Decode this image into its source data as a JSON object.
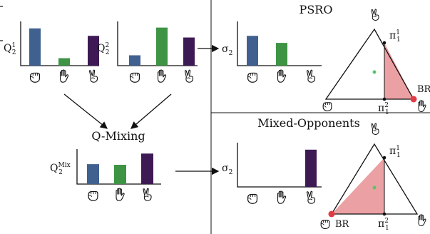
{
  "colors": {
    "blue": "#40618f",
    "green": "#3e9444",
    "purple": "#3e1a55",
    "shade": "#eba0a3",
    "br_dot": "#df3c45",
    "center_dot": "#55c66b",
    "line": "#111111"
  },
  "icons": {
    "rock": "rock-hand-icon",
    "paper": "paper-hand-icon",
    "scissors": "scissors-hand-icon"
  },
  "charts": [
    {
      "id": "q1",
      "axis_label": "Q",
      "axis_sup": "1",
      "axis_sub": "2",
      "values": [
        0.9,
        0.18,
        0.72
      ],
      "order": [
        "rock",
        "paper",
        "scissors"
      ]
    },
    {
      "id": "q2",
      "axis_label": "Q",
      "axis_sup": "2",
      "axis_sub": "2",
      "values": [
        0.25,
        0.92,
        0.68
      ],
      "order": [
        "rock",
        "paper",
        "scissors"
      ]
    },
    {
      "id": "qmix",
      "axis_label": "Q",
      "axis_sup": "Mix",
      "axis_sub": "2",
      "values": [
        0.62,
        0.6,
        0.95
      ],
      "order": [
        "rock",
        "paper",
        "scissors"
      ]
    },
    {
      "id": "sig_psro",
      "axis_label": "σ",
      "axis_sub": "2",
      "values": [
        0.72,
        0.55,
        0.0
      ],
      "order": [
        "rock",
        "paper",
        "scissors"
      ]
    },
    {
      "id": "sig_mo",
      "axis_label": "σ",
      "axis_sub": "2",
      "values": [
        0.0,
        0.0,
        0.9
      ],
      "order": [
        "rock",
        "paper",
        "scissors"
      ]
    }
  ],
  "labels": {
    "psro_title": "PSRO",
    "mo_title": "Mixed-Opponents",
    "qmixing": "Q-Mixing",
    "br": "BR",
    "pi": "π",
    "pi_top_sup": "1",
    "pi_top_sub": "1",
    "pi_bot_sup": "2",
    "pi_bot_sub": "1"
  }
}
